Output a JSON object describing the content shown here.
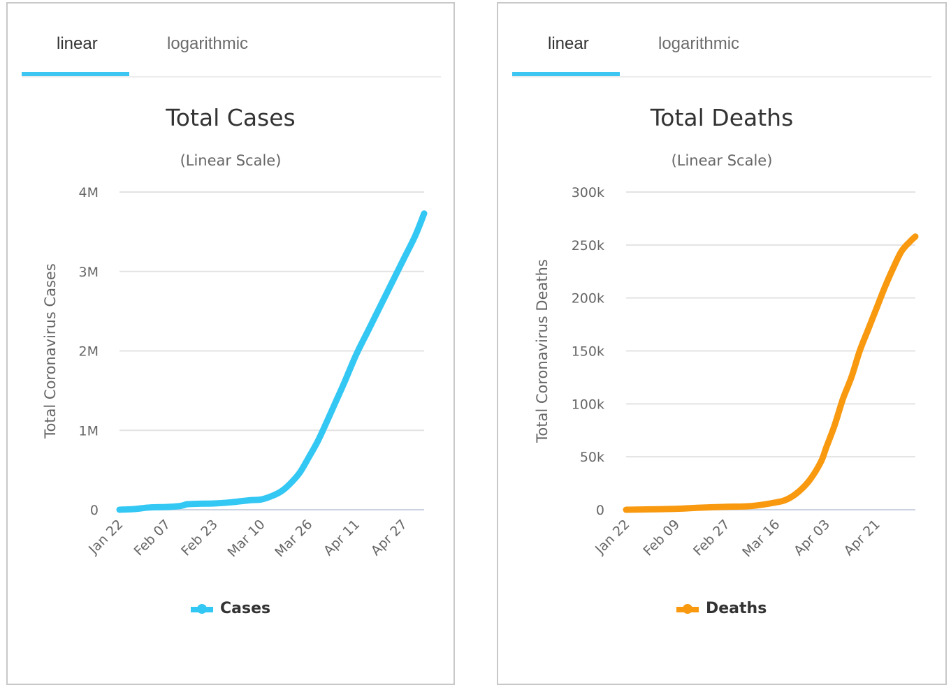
{
  "panels": [
    {
      "tabs": [
        {
          "label": "linear",
          "active": true
        },
        {
          "label": "logarithmic",
          "active": false
        }
      ],
      "accent_tab_color": "#3ec6f3"
    },
    {
      "tabs": [
        {
          "label": "linear",
          "active": true
        },
        {
          "label": "logarithmic",
          "active": false
        }
      ],
      "accent_tab_color": "#3ec6f3"
    }
  ],
  "chart_data": [
    {
      "type": "line",
      "title": "Total Cases",
      "subtitle": "(Linear Scale)",
      "xlabel": "",
      "ylabel": "Total Coronavirus Cases",
      "ylim": [
        0,
        4000000
      ],
      "yticks": [
        0,
        1000000,
        2000000,
        3000000,
        4000000
      ],
      "ytick_labels": [
        "0",
        "1M",
        "2M",
        "3M",
        "4M"
      ],
      "xticks": [
        "Jan 22",
        "Feb 07",
        "Feb 23",
        "Mar 10",
        "Mar 26",
        "Apr 11",
        "Apr 27"
      ],
      "xtick_days": [
        0,
        16,
        32,
        48,
        64,
        80,
        96
      ],
      "xlim_days": [
        0,
        103
      ],
      "grid": true,
      "legend": "bottom-center",
      "series": [
        {
          "name": "Cases",
          "color": "#33c7f4",
          "x_days": [
            0,
            5,
            10,
            16,
            20,
            22,
            23,
            27,
            32,
            38,
            44,
            48,
            52,
            55,
            58,
            61,
            64,
            67,
            70,
            73,
            76,
            80,
            84,
            88,
            92,
            96,
            100,
            103
          ],
          "values": [
            555,
            9000,
            28000,
            35000,
            45000,
            60000,
            70000,
            76000,
            79000,
            95000,
            120000,
            130000,
            180000,
            240000,
            340000,
            470000,
            660000,
            860000,
            1100000,
            1350000,
            1600000,
            1950000,
            2250000,
            2550000,
            2850000,
            3150000,
            3450000,
            3730000
          ]
        }
      ]
    },
    {
      "type": "line",
      "title": "Total Deaths",
      "subtitle": "(Linear Scale)",
      "xlabel": "",
      "ylabel": "Total Coronavirus Deaths",
      "ylim": [
        0,
        300000
      ],
      "yticks": [
        0,
        50000,
        100000,
        150000,
        200000,
        250000,
        300000
      ],
      "ytick_labels": [
        "0",
        "50k",
        "100k",
        "150k",
        "200k",
        "250k",
        "300k"
      ],
      "xticks": [
        "Jan 22",
        "Feb 09",
        "Feb 27",
        "Mar 16",
        "Apr 03",
        "Apr 21"
      ],
      "xtick_days": [
        0,
        18,
        36,
        54,
        72,
        90
      ],
      "xlim_days": [
        0,
        104
      ],
      "grid": true,
      "legend": "bottom-center",
      "series": [
        {
          "name": "Deaths",
          "color": "#f8990f",
          "x_days": [
            0,
            9,
            18,
            27,
            36,
            45,
            54,
            58,
            62,
            66,
            70,
            72,
            75,
            78,
            81,
            84,
            87,
            90,
            93,
            96,
            99,
            102,
            104
          ],
          "values": [
            17,
            400,
            900,
            2000,
            2800,
            3500,
            7000,
            10000,
            17000,
            28000,
            45000,
            59000,
            80000,
            105000,
            125000,
            150000,
            170000,
            190000,
            210000,
            228000,
            244000,
            253000,
            258000
          ]
        }
      ]
    }
  ]
}
